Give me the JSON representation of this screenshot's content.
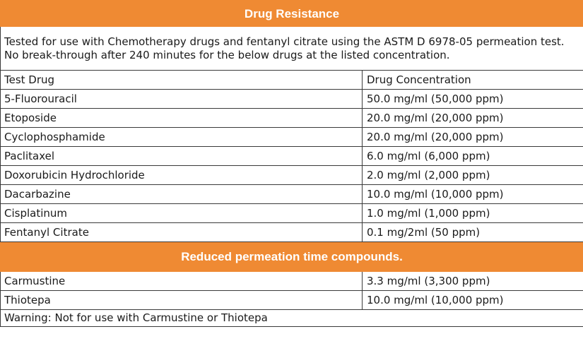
{
  "section1": {
    "title": "Drug Resistance",
    "description": "Tested for use with Chemotherapy drugs and fentanyl citrate using the ASTM D 6978-05 permeation test. No break-through after 240 minutes for the below drugs at the listed concentration."
  },
  "table": {
    "headers": [
      "Test Drug",
      "Drug Concentration"
    ],
    "rows": [
      {
        "drug": "5-Fluorouracil",
        "concentration": "50.0 mg/ml (50,000 ppm)"
      },
      {
        "drug": "Etoposide",
        "concentration": "20.0 mg/ml (20,000 ppm)"
      },
      {
        "drug": "Cyclophosphamide",
        "concentration": "20.0 mg/ml (20,000 ppm)"
      },
      {
        "drug": "Paclitaxel",
        "concentration": "6.0 mg/ml (6,000 ppm)"
      },
      {
        "drug": "Doxorubicin Hydrochloride",
        "concentration": "2.0 mg/ml (2,000 ppm)"
      },
      {
        "drug": "Dacarbazine",
        "concentration": "10.0 mg/ml (10,000 ppm)"
      },
      {
        "drug": "Cisplatinum",
        "concentration": "1.0 mg/ml (1,000 ppm)"
      },
      {
        "drug": "Fentanyl Citrate",
        "concentration": "0.1 mg/2ml (50 ppm)"
      }
    ]
  },
  "section2": {
    "title": "Reduced permeation time compounds.",
    "rows": [
      {
        "drug": "Carmustine",
        "concentration": "3.3 mg/ml (3,300 ppm)"
      },
      {
        "drug": "Thiotepa",
        "concentration": "10.0 mg/ml (10,000 ppm)"
      }
    ],
    "warning": "Warning: Not for use with Carmustine or Thiotepa"
  },
  "colors": {
    "header_bg": "#ef8a33",
    "header_text": "#ffffff",
    "border": "#3a3a3a"
  }
}
